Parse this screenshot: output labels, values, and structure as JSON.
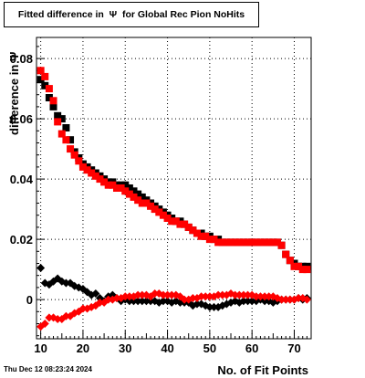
{
  "chart_data": {
    "type": "scatter",
    "title": "Fitted difference in  Ψ  for Global Rec Pion NoHits",
    "xlabel": "No. of Fit Points",
    "ylabel": "difference in Ψ",
    "xlim": [
      9,
      74
    ],
    "ylim": [
      -0.013,
      0.087
    ],
    "xticks": [
      10,
      20,
      30,
      40,
      50,
      60,
      70
    ],
    "yticks": [
      0,
      0.02,
      0.04,
      0.06,
      0.08
    ],
    "ytick_labels": [
      "0",
      "0.02",
      "0.04",
      "0.06",
      "0.08"
    ],
    "grid": true,
    "series": [
      {
        "color": "#000000",
        "marker": "square",
        "x": [
          10,
          11,
          12,
          13,
          14,
          15,
          16,
          17,
          18,
          19,
          20,
          21,
          22,
          23,
          24,
          25,
          26,
          27,
          28,
          29,
          30,
          31,
          32,
          33,
          34,
          35,
          36,
          37,
          38,
          39,
          40,
          41,
          42,
          43,
          44,
          45,
          46,
          47,
          48,
          49,
          50,
          51,
          52,
          53,
          54,
          55,
          56,
          57,
          58,
          59,
          60,
          61,
          62,
          63,
          64,
          65,
          66,
          67,
          68,
          69,
          70,
          71,
          72,
          73
        ],
        "y": [
          0.073,
          0.071,
          0.067,
          0.064,
          0.061,
          0.06,
          0.057,
          0.053,
          0.049,
          0.047,
          0.045,
          0.044,
          0.043,
          0.042,
          0.041,
          0.04,
          0.039,
          0.039,
          0.038,
          0.038,
          0.038,
          0.037,
          0.036,
          0.035,
          0.034,
          0.033,
          0.032,
          0.031,
          0.03,
          0.029,
          0.028,
          0.027,
          0.026,
          0.026,
          0.025,
          0.024,
          0.023,
          0.022,
          0.022,
          0.021,
          0.021,
          0.02,
          0.02,
          0.019,
          0.019,
          0.019,
          0.019,
          0.019,
          0.019,
          0.019,
          0.019,
          0.019,
          0.019,
          0.019,
          0.019,
          0.019,
          0.019,
          0.018,
          0.015,
          0.013,
          0.012,
          0.011,
          0.011,
          0.011
        ]
      },
      {
        "color": "#ff0000",
        "marker": "square",
        "x": [
          10,
          11,
          12,
          13,
          14,
          15,
          16,
          17,
          18,
          19,
          20,
          21,
          22,
          23,
          24,
          25,
          26,
          27,
          28,
          29,
          30,
          31,
          32,
          33,
          34,
          35,
          36,
          37,
          38,
          39,
          40,
          41,
          42,
          43,
          44,
          45,
          46,
          47,
          48,
          49,
          50,
          51,
          52,
          53,
          54,
          55,
          56,
          57,
          58,
          59,
          60,
          61,
          62,
          63,
          64,
          65,
          66,
          67,
          68,
          69,
          70,
          71,
          72,
          73
        ],
        "y": [
          0.076,
          0.074,
          0.07,
          0.066,
          0.059,
          0.055,
          0.053,
          0.05,
          0.048,
          0.046,
          0.044,
          0.043,
          0.042,
          0.041,
          0.04,
          0.039,
          0.038,
          0.038,
          0.037,
          0.037,
          0.036,
          0.035,
          0.034,
          0.033,
          0.032,
          0.032,
          0.031,
          0.03,
          0.029,
          0.028,
          0.027,
          0.026,
          0.026,
          0.025,
          0.025,
          0.024,
          0.023,
          0.022,
          0.021,
          0.021,
          0.02,
          0.02,
          0.019,
          0.019,
          0.019,
          0.019,
          0.019,
          0.019,
          0.019,
          0.019,
          0.019,
          0.019,
          0.019,
          0.019,
          0.019,
          0.019,
          0.019,
          0.018,
          0.015,
          0.013,
          0.011,
          0.011,
          0.01,
          0.01
        ]
      },
      {
        "color": "#000000",
        "marker": "diamond",
        "x": [
          10,
          11,
          12,
          13,
          14,
          15,
          16,
          17,
          18,
          19,
          20,
          21,
          22,
          23,
          24,
          25,
          26,
          27,
          28,
          29,
          30,
          31,
          32,
          33,
          34,
          35,
          36,
          37,
          38,
          39,
          40,
          41,
          42,
          43,
          44,
          45,
          46,
          47,
          48,
          49,
          50,
          51,
          52,
          53,
          54,
          55,
          56,
          57,
          58,
          59,
          60,
          61,
          62,
          63,
          64,
          65,
          66,
          67,
          68,
          69,
          70,
          71,
          72,
          73
        ],
        "y": [
          0.0105,
          0.0055,
          0.005,
          0.006,
          0.007,
          0.006,
          0.0055,
          0.0055,
          0.0045,
          0.004,
          0.0035,
          0.0025,
          0.0015,
          0.002,
          0.0005,
          -0.0005,
          0.001,
          0.0015,
          0.0005,
          -0.0005,
          0.0,
          -0.0005,
          -0.0005,
          -0.0005,
          -0.0005,
          -0.0005,
          -0.0005,
          -0.0005,
          -0.001,
          -0.0005,
          -0.0005,
          -0.001,
          -0.0005,
          -0.001,
          -0.001,
          -0.001,
          -0.002,
          -0.0015,
          -0.0015,
          -0.002,
          -0.0025,
          -0.0025,
          -0.0025,
          -0.002,
          -0.0015,
          -0.001,
          -0.0005,
          -0.001,
          -0.0005,
          -0.0005,
          -0.0005,
          -0.0005,
          0.0,
          -0.0005,
          -0.0005,
          -0.001,
          -0.0005,
          0.0,
          0.0,
          0.0,
          0.0,
          0.0005,
          0.0,
          0.0005
        ]
      },
      {
        "color": "#ff0000",
        "marker": "diamond",
        "x": [
          10,
          11,
          12,
          13,
          14,
          15,
          16,
          17,
          18,
          19,
          20,
          21,
          22,
          23,
          24,
          25,
          26,
          27,
          28,
          29,
          30,
          31,
          32,
          33,
          34,
          35,
          36,
          37,
          38,
          39,
          40,
          41,
          42,
          43,
          44,
          45,
          46,
          47,
          48,
          49,
          50,
          51,
          52,
          53,
          54,
          55,
          56,
          57,
          58,
          59,
          60,
          61,
          62,
          63,
          64,
          65,
          66,
          67,
          68,
          69,
          70,
          71,
          72,
          73
        ],
        "y": [
          -0.009,
          -0.008,
          -0.006,
          -0.006,
          -0.0065,
          -0.0065,
          -0.0055,
          -0.0055,
          -0.0045,
          -0.004,
          -0.003,
          -0.003,
          -0.0025,
          -0.002,
          -0.001,
          -0.001,
          0.0,
          0.0,
          0.0005,
          0.0005,
          0.001,
          0.001,
          0.001,
          0.0015,
          0.0015,
          0.0015,
          0.001,
          0.002,
          0.002,
          0.0015,
          0.0015,
          0.0015,
          0.0015,
          0.001,
          0.0,
          0.0,
          0.0005,
          0.0005,
          0.001,
          0.001,
          0.001,
          0.001,
          0.0015,
          0.0015,
          0.0015,
          0.002,
          0.0015,
          0.0015,
          0.0015,
          0.0015,
          0.0015,
          0.001,
          0.001,
          0.001,
          0.001,
          0.001,
          0.0005,
          0.0,
          0.0,
          0.0,
          0.0,
          0.0005,
          0.0005,
          0.0
        ]
      }
    ]
  },
  "footer": {
    "datestamp": "Thu Dec 12 08:23:24 2024"
  }
}
